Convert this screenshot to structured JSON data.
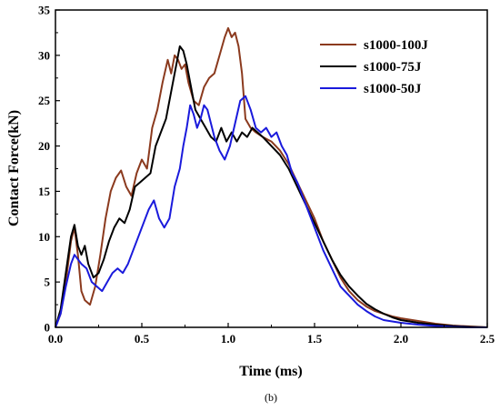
{
  "chart_data": {
    "type": "line",
    "xlabel": "Time (ms)",
    "ylabel": "Contact Force(kN)",
    "caption": "(b)",
    "xlim": [
      0,
      2.5
    ],
    "ylim": [
      0,
      35
    ],
    "xticks": [
      "0.0",
      "0.5",
      "1.0",
      "1.5",
      "2.0",
      "2.5"
    ],
    "yticks": [
      "0",
      "5",
      "10",
      "15",
      "20",
      "25",
      "30",
      "35"
    ],
    "grid": false,
    "legend_position": "top-right",
    "series": [
      {
        "name": "s1000-100J",
        "color": "#8b3a1e",
        "points": [
          [
            0.0,
            0.0
          ],
          [
            0.03,
            1.5
          ],
          [
            0.06,
            5.0
          ],
          [
            0.09,
            9.5
          ],
          [
            0.11,
            11.0
          ],
          [
            0.13,
            8.0
          ],
          [
            0.15,
            4.0
          ],
          [
            0.17,
            3.0
          ],
          [
            0.2,
            2.5
          ],
          [
            0.23,
            4.5
          ],
          [
            0.26,
            8.0
          ],
          [
            0.29,
            12.0
          ],
          [
            0.32,
            15.0
          ],
          [
            0.35,
            16.5
          ],
          [
            0.38,
            17.3
          ],
          [
            0.41,
            15.5
          ],
          [
            0.44,
            14.5
          ],
          [
            0.47,
            17.0
          ],
          [
            0.5,
            18.5
          ],
          [
            0.53,
            17.5
          ],
          [
            0.56,
            22.0
          ],
          [
            0.59,
            24.0
          ],
          [
            0.62,
            27.0
          ],
          [
            0.65,
            29.5
          ],
          [
            0.67,
            28.0
          ],
          [
            0.69,
            30.0
          ],
          [
            0.71,
            29.5
          ],
          [
            0.73,
            28.5
          ],
          [
            0.75,
            29.0
          ],
          [
            0.77,
            27.0
          ],
          [
            0.8,
            25.0
          ],
          [
            0.83,
            24.5
          ],
          [
            0.86,
            26.5
          ],
          [
            0.89,
            27.5
          ],
          [
            0.92,
            28.0
          ],
          [
            0.95,
            30.0
          ],
          [
            0.98,
            32.0
          ],
          [
            1.0,
            33.0
          ],
          [
            1.02,
            32.0
          ],
          [
            1.04,
            32.5
          ],
          [
            1.06,
            31.0
          ],
          [
            1.08,
            28.0
          ],
          [
            1.1,
            23.0
          ],
          [
            1.13,
            22.0
          ],
          [
            1.16,
            21.5
          ],
          [
            1.2,
            21.0
          ],
          [
            1.25,
            20.5
          ],
          [
            1.3,
            19.5
          ],
          [
            1.35,
            18.0
          ],
          [
            1.4,
            16.0
          ],
          [
            1.45,
            14.0
          ],
          [
            1.5,
            12.0
          ],
          [
            1.55,
            9.5
          ],
          [
            1.6,
            7.5
          ],
          [
            1.65,
            5.5
          ],
          [
            1.7,
            4.0
          ],
          [
            1.75,
            3.0
          ],
          [
            1.8,
            2.3
          ],
          [
            1.85,
            1.8
          ],
          [
            1.9,
            1.5
          ],
          [
            1.95,
            1.2
          ],
          [
            2.0,
            1.0
          ],
          [
            2.1,
            0.7
          ],
          [
            2.2,
            0.4
          ],
          [
            2.3,
            0.2
          ],
          [
            2.4,
            0.1
          ],
          [
            2.5,
            0.0
          ]
        ]
      },
      {
        "name": "s1000-75J",
        "color": "#000000",
        "points": [
          [
            0.0,
            0.0
          ],
          [
            0.03,
            2.0
          ],
          [
            0.06,
            6.0
          ],
          [
            0.09,
            10.0
          ],
          [
            0.11,
            11.3
          ],
          [
            0.13,
            9.0
          ],
          [
            0.15,
            8.0
          ],
          [
            0.17,
            9.0
          ],
          [
            0.19,
            7.0
          ],
          [
            0.22,
            5.5
          ],
          [
            0.25,
            6.0
          ],
          [
            0.28,
            7.5
          ],
          [
            0.31,
            9.5
          ],
          [
            0.34,
            11.0
          ],
          [
            0.37,
            12.0
          ],
          [
            0.4,
            11.5
          ],
          [
            0.43,
            13.0
          ],
          [
            0.46,
            15.5
          ],
          [
            0.49,
            16.0
          ],
          [
            0.52,
            16.5
          ],
          [
            0.55,
            17.0
          ],
          [
            0.58,
            20.0
          ],
          [
            0.61,
            21.5
          ],
          [
            0.64,
            23.0
          ],
          [
            0.67,
            26.0
          ],
          [
            0.7,
            29.0
          ],
          [
            0.72,
            31.0
          ],
          [
            0.74,
            30.5
          ],
          [
            0.76,
            29.0
          ],
          [
            0.78,
            27.0
          ],
          [
            0.81,
            24.0
          ],
          [
            0.84,
            23.0
          ],
          [
            0.87,
            22.0
          ],
          [
            0.9,
            21.0
          ],
          [
            0.93,
            20.5
          ],
          [
            0.96,
            22.0
          ],
          [
            0.99,
            20.5
          ],
          [
            1.02,
            21.5
          ],
          [
            1.05,
            20.5
          ],
          [
            1.08,
            21.5
          ],
          [
            1.11,
            21.0
          ],
          [
            1.14,
            22.0
          ],
          [
            1.17,
            21.5
          ],
          [
            1.2,
            21.0
          ],
          [
            1.25,
            20.0
          ],
          [
            1.3,
            19.0
          ],
          [
            1.35,
            17.5
          ],
          [
            1.4,
            15.5
          ],
          [
            1.45,
            13.5
          ],
          [
            1.5,
            11.5
          ],
          [
            1.55,
            9.5
          ],
          [
            1.6,
            7.5
          ],
          [
            1.65,
            5.8
          ],
          [
            1.7,
            4.5
          ],
          [
            1.75,
            3.5
          ],
          [
            1.8,
            2.6
          ],
          [
            1.85,
            2.0
          ],
          [
            1.9,
            1.5
          ],
          [
            1.95,
            1.1
          ],
          [
            2.0,
            0.8
          ],
          [
            2.1,
            0.5
          ],
          [
            2.2,
            0.3
          ],
          [
            2.3,
            0.15
          ],
          [
            2.4,
            0.05
          ],
          [
            2.5,
            0.0
          ]
        ]
      },
      {
        "name": "s1000-50J",
        "color": "#1a1adc",
        "points": [
          [
            0.0,
            0.0
          ],
          [
            0.03,
            1.5
          ],
          [
            0.06,
            4.5
          ],
          [
            0.09,
            7.0
          ],
          [
            0.11,
            8.0
          ],
          [
            0.13,
            7.5
          ],
          [
            0.15,
            7.0
          ],
          [
            0.18,
            6.5
          ],
          [
            0.21,
            5.0
          ],
          [
            0.24,
            4.5
          ],
          [
            0.27,
            4.0
          ],
          [
            0.3,
            5.0
          ],
          [
            0.33,
            6.0
          ],
          [
            0.36,
            6.5
          ],
          [
            0.39,
            6.0
          ],
          [
            0.42,
            7.0
          ],
          [
            0.45,
            8.5
          ],
          [
            0.48,
            10.0
          ],
          [
            0.51,
            11.5
          ],
          [
            0.54,
            13.0
          ],
          [
            0.57,
            14.0
          ],
          [
            0.6,
            12.0
          ],
          [
            0.63,
            11.0
          ],
          [
            0.66,
            12.0
          ],
          [
            0.69,
            15.5
          ],
          [
            0.72,
            17.5
          ],
          [
            0.74,
            20.0
          ],
          [
            0.76,
            22.0
          ],
          [
            0.78,
            24.5
          ],
          [
            0.8,
            23.5
          ],
          [
            0.82,
            22.0
          ],
          [
            0.84,
            23.0
          ],
          [
            0.86,
            24.5
          ],
          [
            0.88,
            24.0
          ],
          [
            0.9,
            22.5
          ],
          [
            0.92,
            21.0
          ],
          [
            0.95,
            19.5
          ],
          [
            0.98,
            18.5
          ],
          [
            1.01,
            20.0
          ],
          [
            1.04,
            22.5
          ],
          [
            1.07,
            25.0
          ],
          [
            1.1,
            25.5
          ],
          [
            1.13,
            24.0
          ],
          [
            1.16,
            22.0
          ],
          [
            1.19,
            21.5
          ],
          [
            1.22,
            22.0
          ],
          [
            1.25,
            21.0
          ],
          [
            1.28,
            21.5
          ],
          [
            1.31,
            20.0
          ],
          [
            1.34,
            19.0
          ],
          [
            1.37,
            17.0
          ],
          [
            1.4,
            16.0
          ],
          [
            1.45,
            13.5
          ],
          [
            1.5,
            11.0
          ],
          [
            1.55,
            8.5
          ],
          [
            1.6,
            6.5
          ],
          [
            1.65,
            4.5
          ],
          [
            1.7,
            3.5
          ],
          [
            1.75,
            2.5
          ],
          [
            1.8,
            1.8
          ],
          [
            1.85,
            1.2
          ],
          [
            1.9,
            0.8
          ],
          [
            2.0,
            0.5
          ],
          [
            2.1,
            0.3
          ],
          [
            2.2,
            0.15
          ],
          [
            2.3,
            0.05
          ],
          [
            2.4,
            0.0
          ],
          [
            2.5,
            0.0
          ]
        ]
      }
    ]
  }
}
